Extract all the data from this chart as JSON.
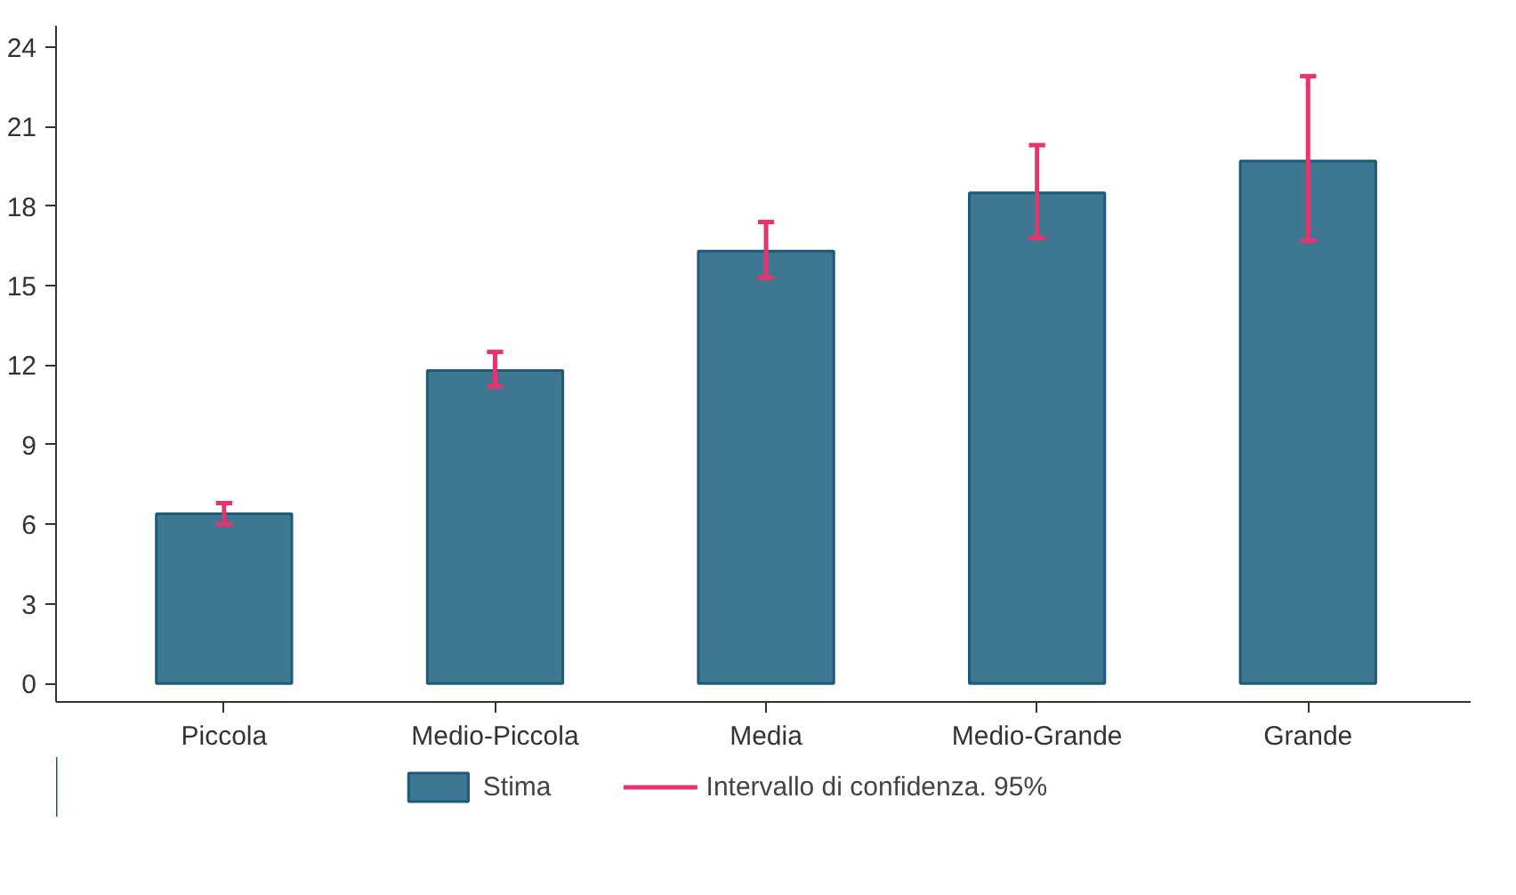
{
  "chart_data": {
    "type": "bar",
    "categories": [
      "Piccola",
      "Medio-Piccola",
      "Media",
      "Medio-Grande",
      "Grande"
    ],
    "series": [
      {
        "name": "Stima",
        "color": "#3e7792",
        "values": [
          6.4,
          11.8,
          16.3,
          18.5,
          19.7
        ],
        "errors": [
          [
            6.0,
            6.8
          ],
          [
            11.2,
            12.5
          ],
          [
            15.3,
            17.4
          ],
          [
            16.8,
            20.3
          ],
          [
            16.7,
            22.9
          ]
        ]
      }
    ],
    "ylim": [
      -0.7,
      24.8
    ],
    "yticks": [
      0,
      3,
      6,
      9,
      12,
      15,
      18,
      21,
      24
    ],
    "grid": false,
    "legend": "bottom",
    "annotations": [
      "Intervallo di confidenza. 95%"
    ]
  }
}
